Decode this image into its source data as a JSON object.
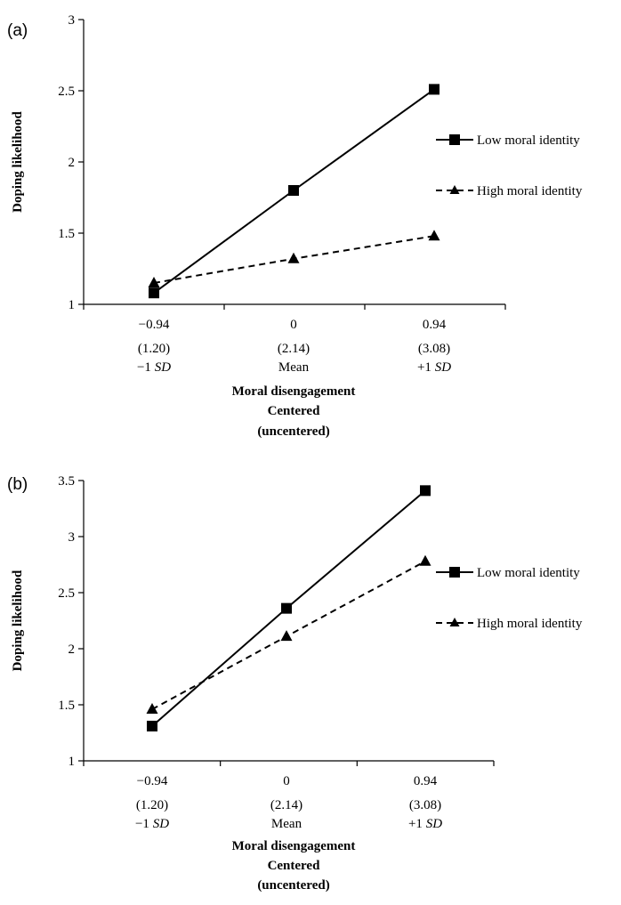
{
  "chart_data": [
    {
      "type": "line",
      "panel_label": "(a)",
      "ylabel": "Doping likelihood",
      "xlabel_lines": [
        "Moral disengagement",
        "Centered",
        "(uncentered)"
      ],
      "categories": [
        {
          "centered": "−0.94",
          "uncentered": "(1.20)",
          "sd_prefix": "−1 ",
          "sd_ital": "SD"
        },
        {
          "centered": "0",
          "uncentered": "(2.14)",
          "sd_prefix": "Mean",
          "sd_ital": ""
        },
        {
          "centered": "0.94",
          "uncentered": "(3.08)",
          "sd_prefix": "+1 ",
          "sd_ital": "SD"
        }
      ],
      "x": [
        -0.94,
        0,
        0.94
      ],
      "ylim": [
        1,
        3
      ],
      "yticks": [
        "1",
        "1.5",
        "2",
        "2.5",
        "3"
      ],
      "series": [
        {
          "name": "Low moral identity",
          "values": [
            1.08,
            1.8,
            2.51
          ],
          "marker": "square",
          "line": "solid"
        },
        {
          "name": "High moral identity",
          "values": [
            1.15,
            1.32,
            1.48
          ],
          "marker": "triangle",
          "line": "dashed"
        }
      ],
      "legend": "right",
      "grid": false
    },
    {
      "type": "line",
      "panel_label": "(b)",
      "ylabel": "Doping likelihood",
      "xlabel_lines": [
        "Moral disengagement",
        "Centered",
        "(uncentered)"
      ],
      "categories": [
        {
          "centered": "−0.94",
          "uncentered": "(1.20)",
          "sd_prefix": "−1 ",
          "sd_ital": "SD"
        },
        {
          "centered": "0",
          "uncentered": "(2.14)",
          "sd_prefix": "Mean",
          "sd_ital": ""
        },
        {
          "centered": "0.94",
          "uncentered": "(3.08)",
          "sd_prefix": "+1 ",
          "sd_ital": "SD"
        }
      ],
      "x": [
        -0.94,
        0,
        0.94
      ],
      "ylim": [
        1,
        3.5
      ],
      "yticks": [
        "1",
        "1.5",
        "2",
        "2.5",
        "3",
        "3.5"
      ],
      "series": [
        {
          "name": "Low moral identity",
          "values": [
            1.31,
            2.36,
            3.41
          ],
          "marker": "square",
          "line": "solid"
        },
        {
          "name": "High moral identity",
          "values": [
            1.46,
            2.11,
            2.78
          ],
          "marker": "triangle",
          "line": "dashed"
        }
      ],
      "legend": "right",
      "grid": false
    }
  ]
}
